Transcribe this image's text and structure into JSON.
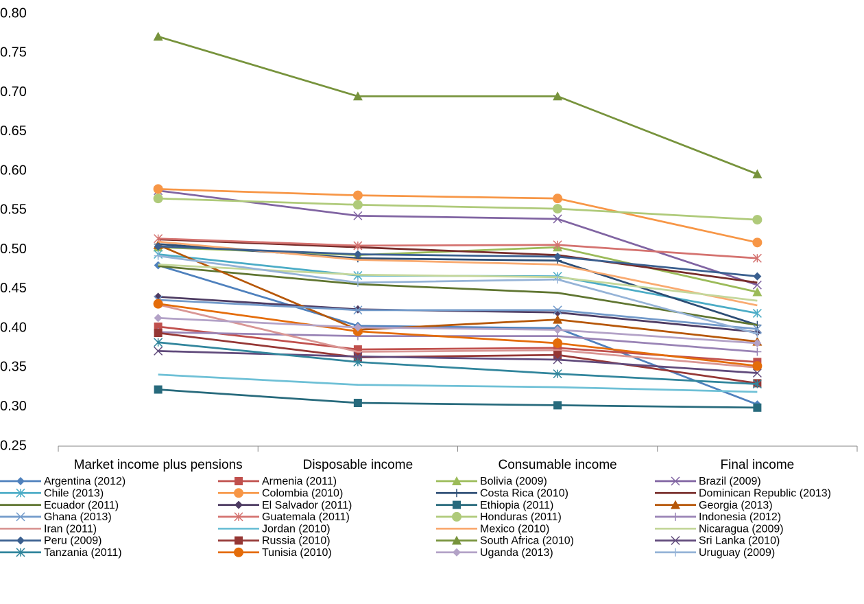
{
  "chart_data": {
    "type": "line",
    "categories": [
      "Market income plus pensions",
      "Disposable income",
      "Consumable income",
      "Final income"
    ],
    "ylim": [
      0.25,
      0.8
    ],
    "yticks": [
      {
        "value": 0.25,
        "label": "0.25"
      },
      {
        "value": 0.3,
        "label": "0.30"
      },
      {
        "value": 0.35,
        "label": "0.35"
      },
      {
        "value": 0.4,
        "label": "0.40"
      },
      {
        "value": 0.45,
        "label": "0.45"
      },
      {
        "value": 0.5,
        "label": "0.50"
      },
      {
        "value": 0.55,
        "label": "0.55"
      },
      {
        "value": 0.6,
        "label": "0.60"
      },
      {
        "value": 0.65,
        "label": "0.65"
      },
      {
        "value": 0.7,
        "label": "0.70"
      },
      {
        "value": 0.75,
        "label": "0.75"
      },
      {
        "value": 0.8,
        "label": "0.80"
      }
    ],
    "grid": false,
    "legend": "bottom",
    "series": [
      {
        "name": "Argentina (2012)",
        "color": "#4F81BD",
        "marker": "diamond",
        "values": [
          0.48,
          0.403,
          0.4,
          0.303
        ]
      },
      {
        "name": "Armenia (2011)",
        "color": "#C0504D",
        "marker": "square",
        "values": [
          0.402,
          0.373,
          0.375,
          0.357
        ]
      },
      {
        "name": "Bolivia (2009)",
        "color": "#9BBB59",
        "marker": "triangle",
        "values": [
          0.503,
          0.493,
          0.503,
          0.446
        ]
      },
      {
        "name": "Brazil (2009)",
        "color": "#8064A2",
        "marker": "x",
        "values": [
          0.575,
          0.543,
          0.539,
          0.455
        ]
      },
      {
        "name": "Chile (2013)",
        "color": "#4BACC6",
        "marker": "star",
        "values": [
          0.494,
          0.467,
          0.466,
          0.419
        ]
      },
      {
        "name": "Colombia (2010)",
        "color": "#F79646",
        "marker": "circle",
        "values": [
          0.577,
          0.569,
          0.565,
          0.509
        ]
      },
      {
        "name": "Costa Rica (2010)",
        "color": "#2C4D75",
        "marker": "plus",
        "values": [
          0.507,
          0.489,
          0.486,
          0.404
        ]
      },
      {
        "name": "Dominican Republic (2013)",
        "color": "#772C2A",
        "marker": "none",
        "values": [
          0.513,
          0.503,
          0.493,
          0.458
        ]
      },
      {
        "name": "Ecuador (2011)",
        "color": "#5F7530",
        "marker": "none",
        "values": [
          0.479,
          0.456,
          0.445,
          0.404
        ]
      },
      {
        "name": "El Salvador (2011)",
        "color": "#4D3B62",
        "marker": "diamond",
        "values": [
          0.44,
          0.424,
          0.42,
          0.395
        ]
      },
      {
        "name": "Ethiopia (2011)",
        "color": "#276A7C",
        "marker": "square",
        "values": [
          0.322,
          0.305,
          0.302,
          0.299
        ]
      },
      {
        "name": "Georgia (2013)",
        "color": "#B65708",
        "marker": "triangle",
        "values": [
          0.506,
          0.398,
          0.411,
          0.383
        ]
      },
      {
        "name": "Ghana (2013)",
        "color": "#729ACA",
        "marker": "x",
        "values": [
          0.436,
          0.423,
          0.423,
          0.399
        ]
      },
      {
        "name": "Guatemala (2011)",
        "color": "#D4726F",
        "marker": "star",
        "values": [
          0.514,
          0.505,
          0.506,
          0.489
        ]
      },
      {
        "name": "Honduras (2011)",
        "color": "#AFCA7A",
        "marker": "circle",
        "values": [
          0.565,
          0.557,
          0.552,
          0.538
        ]
      },
      {
        "name": "Indonesia (2012)",
        "color": "#9983B5",
        "marker": "plus",
        "values": [
          0.395,
          0.39,
          0.39,
          0.37
        ]
      },
      {
        "name": "Iran (2011)",
        "color": "#D99694",
        "marker": "none",
        "values": [
          0.43,
          0.37,
          0.372,
          0.35
        ]
      },
      {
        "name": "Jordan (2010)",
        "color": "#6EC0D6",
        "marker": "none",
        "values": [
          0.341,
          0.328,
          0.325,
          0.319
        ]
      },
      {
        "name": "Mexico (2010)",
        "color": "#F9AA70",
        "marker": "none",
        "values": [
          0.51,
          0.487,
          0.481,
          0.429
        ]
      },
      {
        "name": "Nicaragua (2009)",
        "color": "#C4D79B",
        "marker": "none",
        "values": [
          0.481,
          0.468,
          0.465,
          0.435
        ]
      },
      {
        "name": "Peru (2009)",
        "color": "#3A5F8F",
        "marker": "diamond",
        "values": [
          0.504,
          0.494,
          0.491,
          0.466
        ]
      },
      {
        "name": "Russia (2010)",
        "color": "#953735",
        "marker": "square",
        "values": [
          0.394,
          0.363,
          0.366,
          0.33
        ]
      },
      {
        "name": "South Africa (2010)",
        "color": "#77933C",
        "marker": "triangle",
        "values": [
          0.771,
          0.695,
          0.695,
          0.596
        ]
      },
      {
        "name": "Sri Lanka (2010)",
        "color": "#604A7B",
        "marker": "x",
        "values": [
          0.371,
          0.364,
          0.36,
          0.343
        ]
      },
      {
        "name": "Tanzania (2011)",
        "color": "#31859C",
        "marker": "star",
        "values": [
          0.382,
          0.357,
          0.342,
          0.329
        ]
      },
      {
        "name": "Tunisia (2010)",
        "color": "#E46C0A",
        "marker": "circle",
        "values": [
          0.431,
          0.396,
          0.381,
          0.352
        ]
      },
      {
        "name": "Uganda (2013)",
        "color": "#B3A2C7",
        "marker": "diamond",
        "values": [
          0.413,
          0.401,
          0.398,
          0.381
        ]
      },
      {
        "name": "Uruguay (2009)",
        "color": "#95B3D7",
        "marker": "plus",
        "values": [
          0.492,
          0.458,
          0.462,
          0.393
        ]
      }
    ]
  }
}
